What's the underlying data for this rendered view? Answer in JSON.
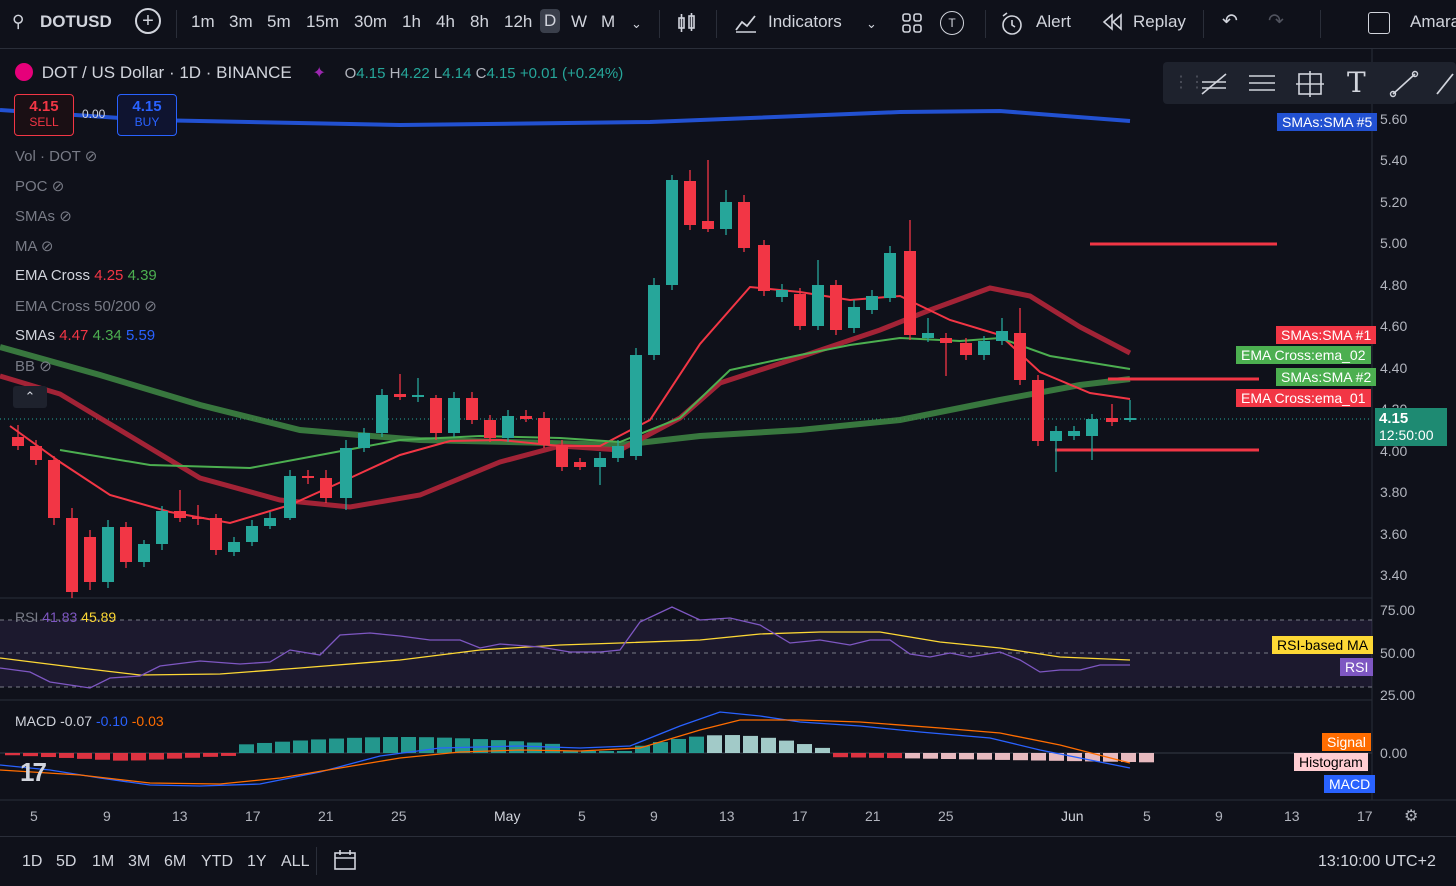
{
  "toolbar": {
    "symbol": "DOTUSD",
    "timeframes": [
      "1m",
      "3m",
      "5m",
      "15m",
      "30m",
      "1h",
      "4h",
      "8h",
      "12h",
      "D",
      "W",
      "M"
    ],
    "active_timeframe": "D",
    "indicators_label": "Indicators",
    "alert_label": "Alert",
    "replay_label": "Replay",
    "user_label": "Amara",
    "template_badge": "T"
  },
  "header": {
    "title": "DOT / US Dollar · 1D · BINANCE",
    "o_label": "O",
    "o_value": "4.15",
    "h_label": "H",
    "h_value": "4.22",
    "l_label": "L",
    "l_value": "4.14",
    "c_label": "C",
    "c_value": "4.15",
    "change": "+0.01 (+0.24%)"
  },
  "trade": {
    "sell_price": "4.15",
    "sell_label": "SELL",
    "spread": "0.00",
    "buy_price": "4.15",
    "buy_label": "BUY"
  },
  "legend": {
    "vol": "Vol · DOT",
    "poc": "POC",
    "smas_hidden": "SMAs",
    "ma": "MA",
    "ema_cross": "EMA Cross",
    "ema_v1": "4.25",
    "ema_v2": "4.39",
    "ema_cross_50_200": "EMA Cross 50/200",
    "smas": "SMAs",
    "sma_v1": "4.47",
    "sma_v2": "4.34",
    "sma_v3": "5.59",
    "bb": "BB"
  },
  "price_axis": [
    "5.60",
    "5.40",
    "5.20",
    "5.00",
    "4.80",
    "4.60",
    "4.40",
    "4.20",
    "4.00",
    "3.80",
    "3.60",
    "3.40"
  ],
  "tags": {
    "sma5": "SMAs:SMA #5",
    "sma1": "SMAs:SMA #1",
    "ema02": "EMA Cross:ema_02",
    "sma2": "SMAs:SMA #2",
    "ema01": "EMA Cross:ema_01",
    "last_price": "4.15",
    "countdown": "12:50:00"
  },
  "rsi": {
    "label": "RSI",
    "value": "41.83",
    "ma_value": "45.89",
    "axis": [
      "75.00",
      "50.00",
      "25.00"
    ],
    "ma_tag": "RSI-based MA",
    "rsi_tag": "RSI"
  },
  "macd": {
    "label": "MACD",
    "v1": "-0.07",
    "v2": "-0.10",
    "v3": "-0.03",
    "axis_zero": "0.00",
    "signal_tag": "Signal",
    "hist_tag": "Histogram",
    "macd_tag": "MACD"
  },
  "time_axis": [
    "5",
    "9",
    "13",
    "17",
    "21",
    "25",
    "May",
    "5",
    "9",
    "13",
    "17",
    "21",
    "25",
    "Jun",
    "5",
    "9",
    "13",
    "17"
  ],
  "bottom": {
    "ranges": [
      "1D",
      "5D",
      "1M",
      "3M",
      "6M",
      "YTD",
      "1Y",
      "ALL"
    ],
    "clock": "13:10:00 UTC+2"
  },
  "colors": {
    "up": "#26a69a",
    "down": "#f23645",
    "sma5": "#2251d1",
    "ema_fast": "#f23645",
    "ema_slow": "#4caf50",
    "rsi": "#7e57c2",
    "rsi_ma": "#fdd835",
    "macd": "#2962ff",
    "signal": "#ff6d00"
  }
}
